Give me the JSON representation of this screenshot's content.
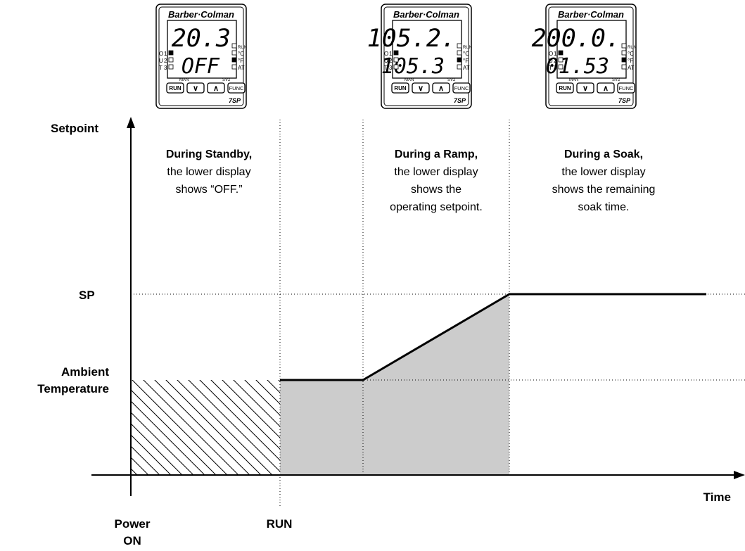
{
  "axes": {
    "y_label": "Setpoint",
    "x_label": "Time",
    "sp_label": "SP",
    "ambient_line1": "Ambient",
    "ambient_line2": "Temperature",
    "power_on_line1": "Power",
    "power_on_line2": "ON",
    "run_label": "RUN"
  },
  "phases": [
    {
      "title": "During Standby,",
      "lines": [
        "the lower display",
        "shows “OFF.”"
      ]
    },
    {
      "title": "During a Ramp,",
      "lines": [
        "the lower display",
        "shows the",
        "operating setpoint."
      ]
    },
    {
      "title": "During a Soak,",
      "lines": [
        "the lower display",
        "shows the remaining",
        "soak time."
      ]
    }
  ],
  "controllers": [
    {
      "brand": "Barber·Colman",
      "upper": "20.3",
      "lower": "OFF",
      "model": "7SP"
    },
    {
      "brand": "Barber·Colman",
      "upper": "105.2.",
      "lower": "105.3",
      "model": "7SP"
    },
    {
      "brand": "Barber·Colman",
      "upper": "200.0.",
      "lower": "01.53",
      "model": "7SP"
    }
  ],
  "controller_labels": {
    "out_letters": [
      "O",
      "U",
      "T"
    ],
    "out_numbers": [
      "1",
      "2",
      "3"
    ],
    "right_indicators": [
      "RUN",
      "°C",
      "°F",
      "AT"
    ],
    "man": "MAN",
    "sv2": "SV2",
    "buttons": [
      "RUN",
      "∨",
      "∧",
      "FUNC"
    ]
  },
  "colors": {
    "fill": "#cccccc",
    "line": "#000000"
  }
}
